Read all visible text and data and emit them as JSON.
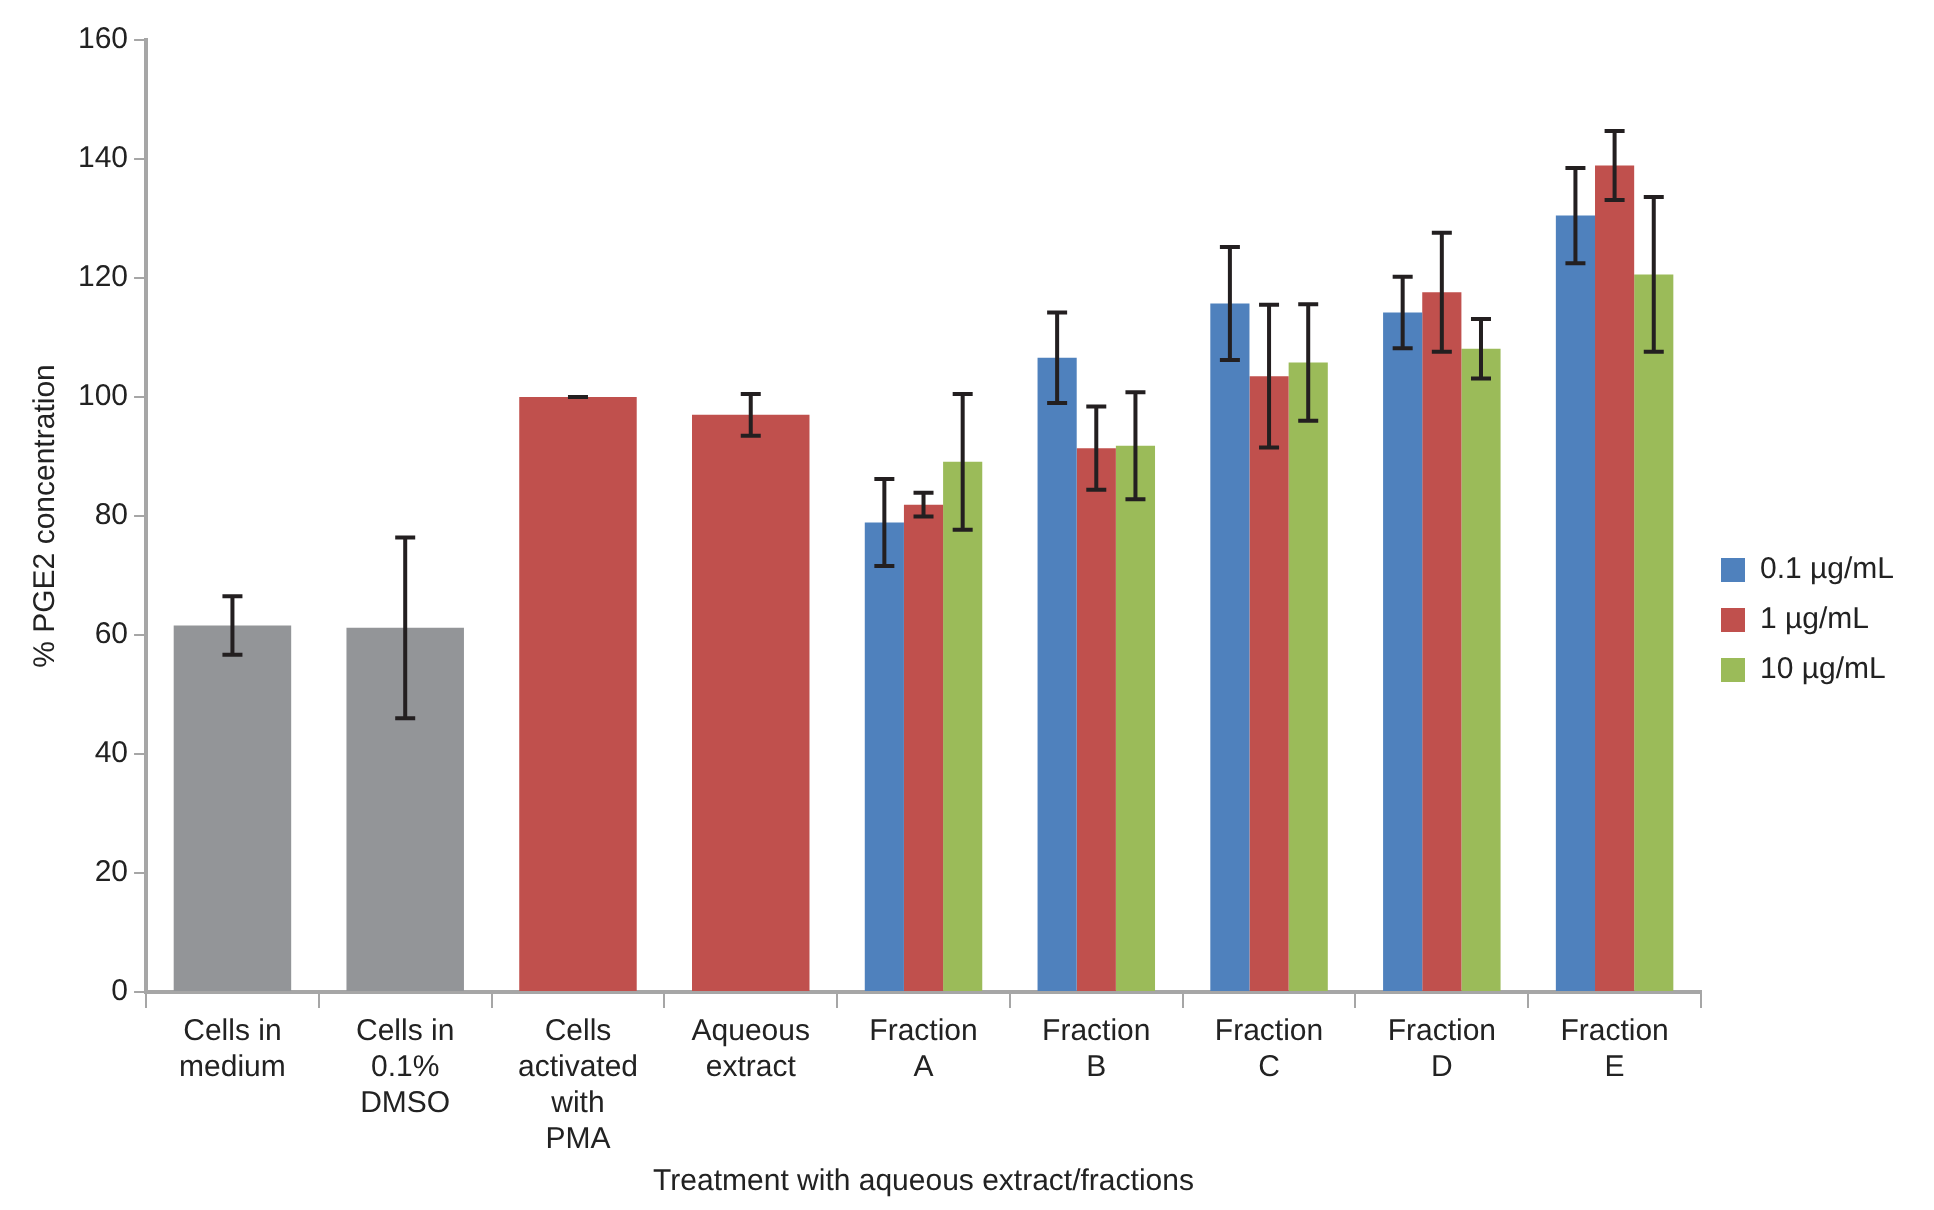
{
  "chart_data": {
    "type": "bar",
    "ylabel": "% PGE2 concentration",
    "xlabel": "Treatment with aqueous extract/fractions",
    "categories": [
      "Cells in medium",
      "Cells in 0.1% DMSO",
      "Cells activated with PMA",
      "Aqueous extract",
      "Fraction A",
      "Fraction B",
      "Fraction C",
      "Fraction D",
      "Fraction E"
    ],
    "series": [
      {
        "color": "#939598",
        "values": [
          61.6,
          61.2,
          null,
          null,
          null,
          null,
          null,
          null,
          null
        ],
        "errors": [
          4.9,
          15.2,
          null,
          null,
          null,
          null,
          null,
          null,
          null
        ]
      },
      {
        "name": "0.1 µg/mL",
        "color": "#4f81bd",
        "values": [
          null,
          null,
          null,
          null,
          78.9,
          106.6,
          115.7,
          114.2,
          130.5
        ],
        "errors": [
          null,
          null,
          null,
          null,
          7.3,
          7.6,
          9.5,
          6,
          8
        ]
      },
      {
        "name": "1 µg/mL",
        "color": "#c0504d",
        "values": [
          null,
          null,
          100,
          97,
          81.9,
          91.4,
          103.5,
          117.6,
          138.9
        ],
        "errors": [
          null,
          null,
          0,
          3.5,
          2,
          7,
          12,
          10,
          5.8
        ]
      },
      {
        "name": "10 µg/mL",
        "color": "#9bbb59",
        "values": [
          null,
          null,
          null,
          null,
          89.1,
          91.8,
          105.8,
          108.1,
          120.6
        ],
        "errors": [
          null,
          null,
          null,
          null,
          11.4,
          9,
          9.8,
          5,
          13
        ]
      }
    ],
    "ylim": [
      0,
      160
    ],
    "yticks": [
      0,
      20,
      40,
      60,
      80,
      100,
      120,
      140,
      160
    ],
    "legend": "right"
  }
}
